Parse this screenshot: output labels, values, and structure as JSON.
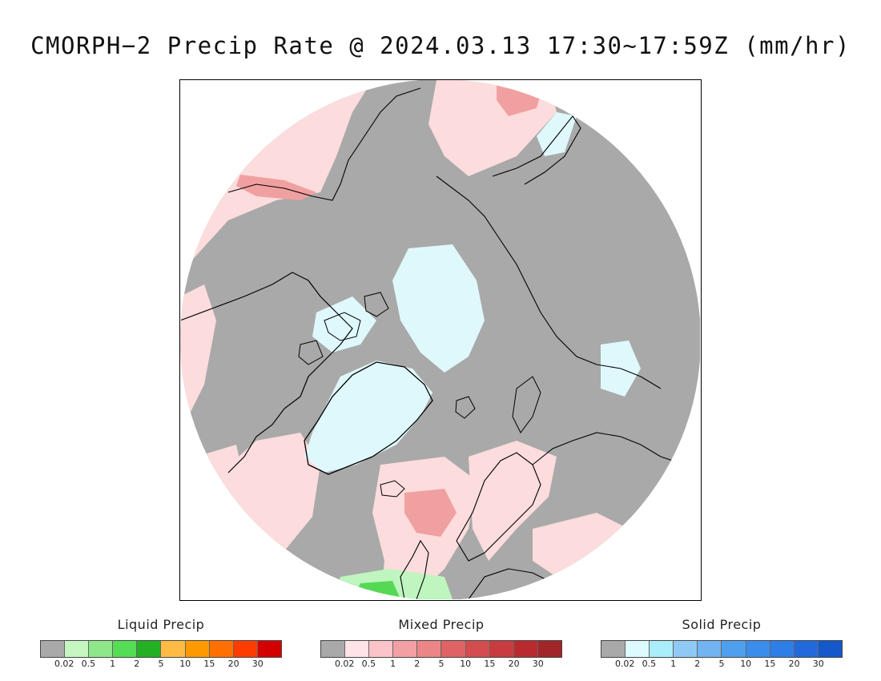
{
  "title": "CMORPH−2 Precip Rate @ 2024.03.13 17:30∼17:59Z (mm/hr)",
  "map": {
    "projection": "north-polar-stereographic",
    "background_color": "#a9a9a9",
    "coastline_color": "#000000",
    "region_colors": {
      "no_precip": "#a9a9a9",
      "light_mixed": "#fcdcdc",
      "moderate_mixed": "#f0a0a0",
      "light_solid": "#dff8fb",
      "light_liquid": "#bff5bf",
      "moderate_liquid": "#55d955"
    }
  },
  "legends": [
    {
      "title": "Liquid Precip",
      "colors": [
        "#a9a9a9",
        "#c6f7c1",
        "#8ee88a",
        "#55dd55",
        "#23b023",
        "#ffbb44",
        "#ff9900",
        "#ff7000",
        "#ff3c00",
        "#d40000"
      ],
      "ticks": [
        "0.02",
        "0.5",
        "1",
        "2",
        "5",
        "10",
        "15",
        "20",
        "30"
      ]
    },
    {
      "title": "Mixed Precip",
      "colors": [
        "#a9a9a9",
        "#ffe3e7",
        "#fcc3c8",
        "#f3a0a4",
        "#ec8586",
        "#df6265",
        "#d44c4e",
        "#c83b3e",
        "#b82a2e",
        "#a1262a"
      ],
      "ticks": [
        "0.02",
        "0.5",
        "1",
        "2",
        "5",
        "10",
        "15",
        "20",
        "30"
      ]
    },
    {
      "title": "Solid Precip",
      "colors": [
        "#a9a9a9",
        "#ddfbff",
        "#aaeefb",
        "#8fcaf5",
        "#72b4f1",
        "#4ea0ee",
        "#3b8deb",
        "#2f7de6",
        "#2469dc",
        "#1458cc"
      ],
      "ticks": [
        "0.02",
        "0.5",
        "1",
        "2",
        "5",
        "10",
        "15",
        "20",
        "30"
      ]
    }
  ]
}
